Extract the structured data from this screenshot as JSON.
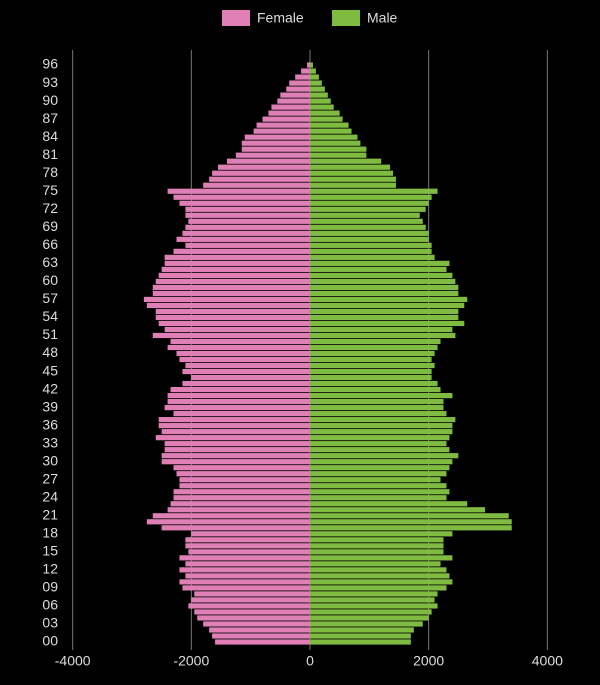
{
  "chart_data": {
    "type": "pyramid",
    "categories": [
      "00",
      null,
      null,
      "03",
      null,
      null,
      "06",
      null,
      null,
      "09",
      null,
      null,
      "12",
      null,
      null,
      "15",
      null,
      null,
      "18",
      null,
      null,
      "21",
      null,
      null,
      "24",
      null,
      null,
      "27",
      null,
      null,
      "30",
      null,
      null,
      "33",
      null,
      null,
      "36",
      null,
      null,
      "39",
      null,
      null,
      "42",
      null,
      null,
      "45",
      null,
      null,
      "48",
      null,
      null,
      "51",
      null,
      null,
      "54",
      null,
      null,
      "57",
      null,
      null,
      "60",
      null,
      null,
      "63",
      null,
      null,
      "66",
      null,
      null,
      "69",
      null,
      null,
      "72",
      null,
      null,
      "75",
      null,
      null,
      "78",
      null,
      null,
      "81",
      null,
      null,
      "84",
      null,
      null,
      "87",
      null,
      null,
      "90",
      null,
      null,
      "93",
      null,
      null,
      "96"
    ],
    "series": [
      {
        "name": "Female",
        "color": "#df7fb6",
        "values": [
          -1600,
          -1650,
          -1700,
          -1800,
          -1900,
          -1950,
          -2050,
          -2000,
          -1950,
          -2150,
          -2200,
          -2100,
          -2200,
          -2100,
          -2200,
          -2050,
          -2100,
          -2100,
          -2000,
          -2500,
          -2750,
          -2650,
          -2400,
          -2350,
          -2300,
          -2300,
          -2200,
          -2200,
          -2250,
          -2300,
          -2500,
          -2500,
          -2450,
          -2450,
          -2600,
          -2500,
          -2550,
          -2550,
          -2300,
          -2450,
          -2400,
          -2400,
          -2350,
          -2150,
          -2000,
          -2150,
          -2100,
          -2200,
          -2250,
          -2400,
          -2350,
          -2650,
          -2450,
          -2550,
          -2600,
          -2600,
          -2750,
          -2800,
          -2650,
          -2650,
          -2600,
          -2550,
          -2500,
          -2450,
          -2450,
          -2300,
          -2100,
          -2250,
          -2150,
          -2100,
          -2050,
          -2100,
          -2100,
          -2200,
          -2300,
          -2400,
          -1800,
          -1700,
          -1650,
          -1550,
          -1400,
          -1250,
          -1150,
          -1150,
          -1100,
          -950,
          -900,
          -800,
          -700,
          -650,
          -550,
          -500,
          -400,
          -350,
          -250,
          -150,
          -50
        ]
      },
      {
        "name": "Male",
        "color": "#80bb41",
        "values": [
          1700,
          1700,
          1750,
          1900,
          2000,
          2050,
          2150,
          2100,
          2150,
          2300,
          2400,
          2350,
          2300,
          2200,
          2400,
          2250,
          2250,
          2250,
          2400,
          3400,
          3400,
          3350,
          2950,
          2650,
          2300,
          2350,
          2300,
          2200,
          2300,
          2350,
          2400,
          2500,
          2350,
          2300,
          2350,
          2400,
          2400,
          2450,
          2300,
          2250,
          2250,
          2400,
          2200,
          2150,
          2050,
          2050,
          2100,
          2050,
          2100,
          2150,
          2200,
          2450,
          2400,
          2600,
          2500,
          2500,
          2600,
          2650,
          2500,
          2500,
          2450,
          2400,
          2300,
          2350,
          2100,
          2050,
          2050,
          2000,
          2000,
          1950,
          1900,
          1850,
          1950,
          2000,
          2050,
          2150,
          1450,
          1450,
          1400,
          1350,
          1200,
          950,
          950,
          850,
          800,
          700,
          650,
          550,
          500,
          400,
          350,
          300,
          250,
          200,
          150,
          100,
          50
        ]
      }
    ],
    "xlim": [
      -4500,
      4500
    ],
    "xticks": [
      -4000,
      -2000,
      0,
      2000,
      4000
    ],
    "grid": true
  }
}
